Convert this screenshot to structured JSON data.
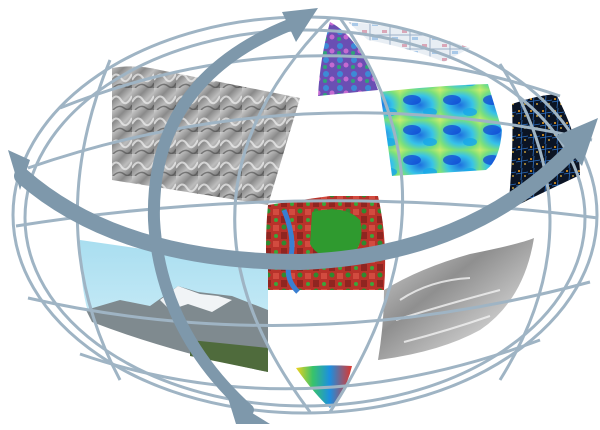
{
  "globe": {
    "outline_color": "#9fb4c4",
    "arrow_color": "#7e98ab",
    "tiles": [
      {
        "name": "tile-terrain-grayscale",
        "kind": "grayscale hillshade elevation"
      },
      {
        "name": "tile-multispectral-violet",
        "kind": "false-color mountain imagery"
      },
      {
        "name": "tile-urban-map",
        "kind": "cadastral map"
      },
      {
        "name": "tile-blue-green-field",
        "kind": "thermal / moisture field"
      },
      {
        "name": "tile-night-lights",
        "kind": "dark urban network"
      },
      {
        "name": "tile-urban-land-cover",
        "kind": "red/green land cover with river"
      },
      {
        "name": "tile-glacier-photo",
        "kind": "mountain photograph"
      },
      {
        "name": "tile-relief-map",
        "kind": "shaded relief topographic map"
      },
      {
        "name": "tile-spectral-bottom",
        "kind": "colorful raster"
      }
    ]
  }
}
